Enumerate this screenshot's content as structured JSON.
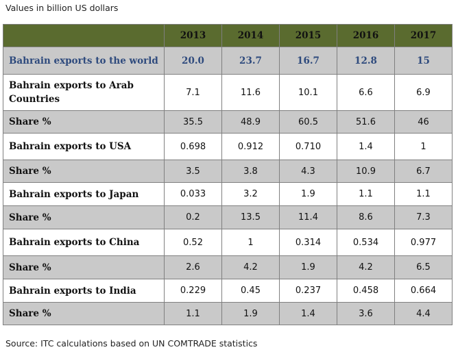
{
  "caption": "Values in billion US dollars",
  "source": "Source: ITC calculations based on UN COMTRADE statistics",
  "table": {
    "headers": [
      "",
      "2013",
      "2014",
      "2015",
      "2016",
      "2017"
    ],
    "rows": [
      {
        "label": "Bahrain   exports to the world",
        "values": [
          "20.0",
          "23.7",
          "16.7",
          "12.8",
          "15"
        ]
      },
      {
        "label": "Bahrain   exports to Arab Countries",
        "values": [
          "7.1",
          "11.6",
          "10.1",
          "6.6",
          "6.9"
        ]
      },
      {
        "label": "Share %",
        "values": [
          "35.5",
          "48.9",
          "60.5",
          "51.6",
          "46"
        ]
      },
      {
        "label": "Bahrain exports to USA",
        "values": [
          "0.698",
          "0.912",
          "0.710",
          "1.4",
          "1"
        ]
      },
      {
        "label": "Share %",
        "values": [
          "3.5",
          "3.8",
          "4.3",
          "10.9",
          "6.7"
        ]
      },
      {
        "label": "Bahrain  exports to Japan",
        "values": [
          "0.033",
          "3.2",
          "1.9",
          "1.1",
          "1.1"
        ]
      },
      {
        "label": "Share %",
        "values": [
          "0.2",
          "13.5",
          "11.4",
          "8.6",
          "7.3"
        ]
      },
      {
        "label": "Bahrain  exports to China",
        "values": [
          "0.52",
          "1",
          "0.314",
          "0.534",
          "0.977"
        ]
      },
      {
        "label": "Share %",
        "values": [
          "2.6",
          "4.2",
          "1.9",
          "4.2",
          "6.5"
        ]
      },
      {
        "label": "Bahrain   exports to India",
        "values": [
          "0.229",
          "0.45",
          "0.237",
          "0.458",
          "0.664"
        ]
      },
      {
        "label": "Share %",
        "values": [
          "1.1",
          "1.9",
          "1.4",
          "3.6",
          "4.4"
        ]
      }
    ]
  }
}
